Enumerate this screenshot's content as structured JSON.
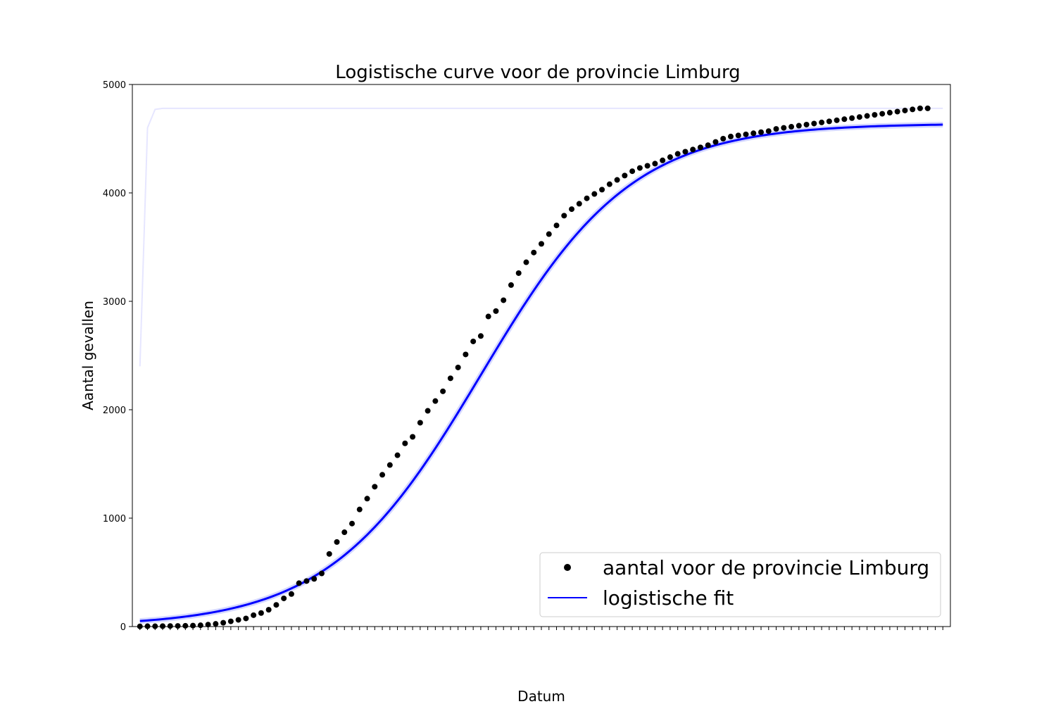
{
  "chart_data": {
    "type": "scatter",
    "title": "Logistische curve voor de provincie Limburg",
    "xlabel": "Datum",
    "ylabel": "Aantal gevallen",
    "ylim": [
      0,
      5000
    ],
    "xlim": [
      -1,
      107
    ],
    "yticks": [
      0,
      1000,
      2000,
      3000,
      4000,
      5000
    ],
    "xtick_count": 107,
    "xtick_labels": [],
    "legend_position": "lower-right",
    "colors": {
      "points": "#000000",
      "fit": "#0000ff",
      "band": "#e6e6ff"
    },
    "series": [
      {
        "name": "aantal voor de provincie Limburg",
        "kind": "points",
        "x": [
          0,
          1,
          2,
          3,
          4,
          5,
          6,
          7,
          8,
          9,
          10,
          11,
          12,
          13,
          14,
          15,
          16,
          17,
          18,
          19,
          20,
          21,
          22,
          23,
          24,
          25,
          26,
          27,
          28,
          29,
          30,
          31,
          32,
          33,
          34,
          35,
          36,
          37,
          38,
          39,
          40,
          41,
          42,
          43,
          44,
          45,
          46,
          47,
          48,
          49,
          50,
          51,
          52,
          53,
          54,
          55,
          56,
          57,
          58,
          59,
          60,
          61,
          62,
          63,
          64,
          65,
          66,
          67,
          68,
          69,
          70,
          71,
          72,
          73,
          74,
          75,
          76,
          77,
          78,
          79,
          80,
          81,
          82,
          83,
          84,
          85,
          86,
          87,
          88,
          89,
          90,
          91,
          92,
          93,
          94,
          95,
          96,
          97,
          98,
          99,
          100,
          101,
          102,
          103,
          104
        ],
        "y": [
          2,
          3,
          3,
          4,
          5,
          6,
          7,
          9,
          12,
          18,
          25,
          35,
          48,
          62,
          75,
          105,
          125,
          155,
          200,
          260,
          300,
          400,
          420,
          440,
          490,
          670,
          780,
          870,
          950,
          1080,
          1180,
          1290,
          1400,
          1490,
          1580,
          1690,
          1750,
          1880,
          1990,
          2080,
          2170,
          2290,
          2390,
          2510,
          2630,
          2680,
          2860,
          2910,
          3010,
          3150,
          3260,
          3360,
          3450,
          3530,
          3620,
          3700,
          3790,
          3850,
          3900,
          3950,
          3990,
          4030,
          4080,
          4120,
          4160,
          4200,
          4230,
          4250,
          4270,
          4300,
          4330,
          4360,
          4380,
          4400,
          4420,
          4440,
          4470,
          4500,
          4520,
          4530,
          4540,
          4550,
          4560,
          4570,
          4590,
          4600,
          4610,
          4620,
          4630,
          4640,
          4650,
          4660,
          4670,
          4680,
          4690,
          4700,
          4710,
          4720,
          4730,
          4740,
          4750,
          4760,
          4770,
          4780,
          4780
        ]
      },
      {
        "name": "logistische fit",
        "kind": "line",
        "model": {
          "K": 4640,
          "x0": 45,
          "k": 0.1
        }
      }
    ],
    "band_curve": {
      "x": [
        0,
        1,
        2,
        3,
        106
      ],
      "y": [
        2400,
        4600,
        4770,
        4780,
        4780
      ]
    }
  }
}
